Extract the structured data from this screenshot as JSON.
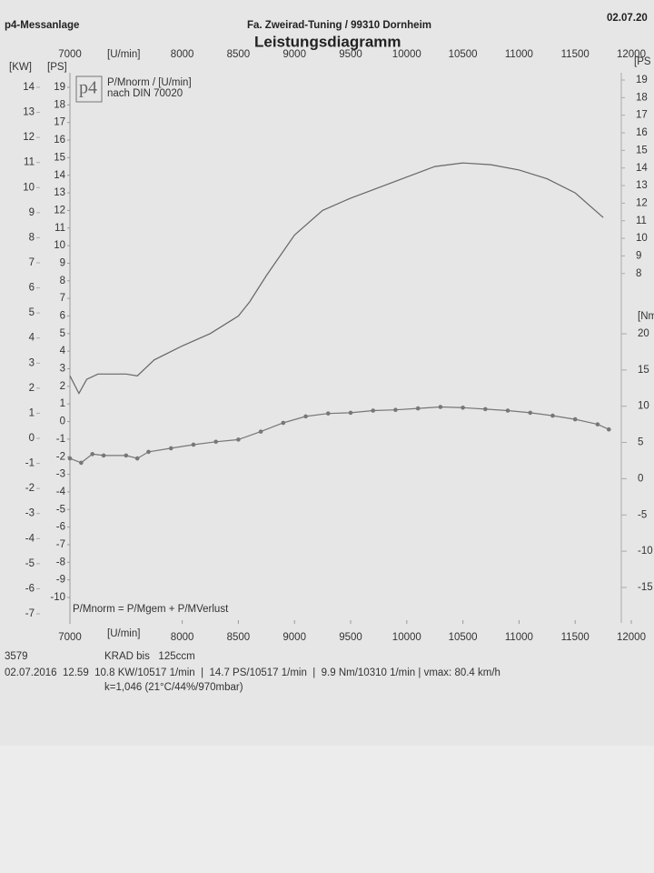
{
  "header": {
    "left": "p4-Messanlage",
    "center": "Fa. Zweirad-Tuning / 99310 Dornheim",
    "date": "02.07.20"
  },
  "chart_data": {
    "type": "line",
    "title": "Leistungsdiagramm",
    "legend": [
      "P/Mnorm / [U/min]",
      "nach DIN 70020"
    ],
    "logo": "p4",
    "annotation": "P/Mnorm = P/Mgem + P/MVerlust",
    "xlabel": "[U/min]",
    "xlim": [
      7000,
      12000
    ],
    "xticks": [
      7000,
      8000,
      8500,
      9000,
      9500,
      10000,
      10500,
      11000,
      11500,
      12000
    ],
    "ylabel": "[PS]",
    "ylim": [
      -10,
      19
    ],
    "yticks": [
      -10,
      -9,
      -8,
      -7,
      -6,
      -5,
      -4,
      -3,
      -2,
      -1,
      0,
      1,
      2,
      3,
      4,
      5,
      6,
      7,
      8,
      9,
      10,
      11,
      12,
      13,
      14,
      15,
      16,
      17,
      18,
      19
    ],
    "right_ylabel": "[PS",
    "right_yticks": [
      8,
      9,
      10,
      11,
      12,
      13,
      14,
      15,
      16,
      17,
      18,
      19
    ],
    "kw_label": "[KW]",
    "kw_lim": [
      -7,
      14
    ],
    "kw_ticks": [
      -7,
      -6,
      -5,
      -4,
      -3,
      -2,
      -1,
      0,
      1,
      2,
      3,
      4,
      5,
      6,
      7,
      8,
      9,
      10,
      11,
      12,
      13,
      14
    ],
    "y2label": "[Nm",
    "y2lim": [
      -15,
      20
    ],
    "y2ticks": [
      -15,
      -10,
      -5,
      0,
      5,
      10,
      15,
      20
    ],
    "series": [
      {
        "color": "#666666",
        "markers": false,
        "x": [
          7000,
          7080,
          7150,
          7250,
          7500,
          7600,
          7750,
          8000,
          8250,
          8500,
          8600,
          8750,
          9000,
          9250,
          9500,
          9750,
          10000,
          10250,
          10500,
          10750,
          11000,
          11250,
          11500,
          11750
        ],
        "values": [
          2.6,
          1.6,
          2.4,
          2.7,
          2.7,
          2.6,
          3.5,
          4.3,
          5.0,
          6.0,
          6.8,
          8.3,
          10.6,
          12.0,
          12.7,
          13.3,
          13.9,
          14.5,
          14.7,
          14.6,
          14.3,
          13.8,
          13.0,
          11.6
        ]
      },
      {
        "color": "#777777",
        "markers": true,
        "axis": "y2",
        "x": [
          7000,
          7100,
          7200,
          7300,
          7500,
          7600,
          7700,
          7900,
          8100,
          8300,
          8500,
          8700,
          8900,
          9100,
          9300,
          9500,
          9700,
          9900,
          10100,
          10300,
          10500,
          10700,
          10900,
          11100,
          11300,
          11500,
          11700,
          11800
        ],
        "values": [
          2.8,
          2.2,
          3.4,
          3.2,
          3.2,
          2.8,
          3.7,
          4.2,
          4.7,
          5.1,
          5.4,
          6.5,
          7.7,
          8.6,
          9.0,
          9.1,
          9.4,
          9.5,
          9.7,
          9.9,
          9.8,
          9.6,
          9.4,
          9.1,
          8.7,
          8.2,
          7.5,
          6.8
        ]
      }
    ]
  },
  "footer": {
    "id": "3579",
    "vehicle": "KRAD bis   125ccm",
    "result": "02.07.2016  12.59  10.8 KW/10517 1/min  |  14.7 PS/10517 1/min  |  9.9 Nm/10310 1/min | vmax: 80.4 km/h",
    "conditions": "k=1,046 (21°C/44%/970mbar)"
  }
}
